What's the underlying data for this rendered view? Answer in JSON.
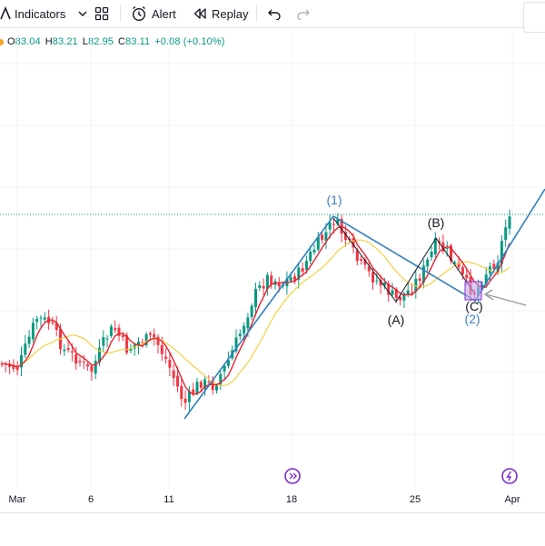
{
  "toolbar": {
    "indicators_label": "Indicators",
    "alert_label": "Alert",
    "replay_label": "Replay"
  },
  "ohlc": {
    "o_label": "O",
    "o_value": "83.04",
    "h_label": "H",
    "h_value": "83.21",
    "l_label": "L",
    "l_value": "82.95",
    "c_label": "C",
    "c_value": "83.11",
    "change": "+0.08 (+0.10%)"
  },
  "x_axis": {
    "labels": [
      "Mar",
      "6",
      "11",
      "18",
      "25",
      "Apr"
    ]
  },
  "wave_labels": {
    "w1": "(1)",
    "w2": "(2)",
    "wa": "(A)",
    "wb": "(B)",
    "wc": "(C)"
  },
  "colors": {
    "up": "#089981",
    "down": "#f23645",
    "fast_ma": "#e5222f",
    "slow_ma": "#f5d042",
    "wave_line": "#2f7fbf",
    "wave_label_blue": "#3e7fc4",
    "event_icon": "#7b2bd1"
  },
  "icons": [
    "chevron-down-icon",
    "layouts-icon",
    "alert-clock-icon",
    "replay-icon",
    "undo-icon",
    "redo-icon",
    "event-icon",
    "dividend-icon"
  ]
}
